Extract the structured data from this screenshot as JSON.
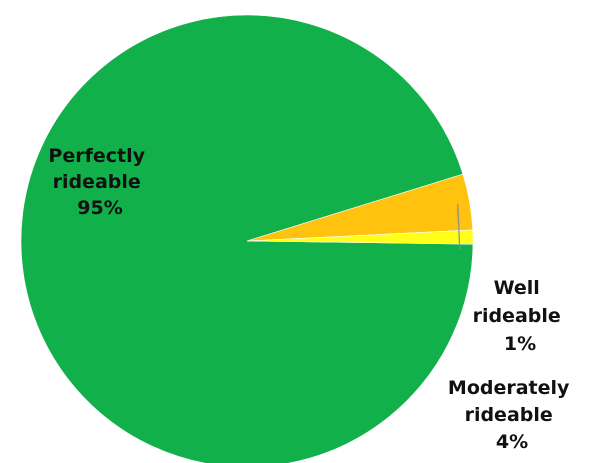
{
  "chart_data": {
    "type": "pie",
    "title": "",
    "slices": [
      {
        "label": [
          "Perfectly",
          "rideable",
          "95%"
        ],
        "value": 95,
        "color": "#12b04a"
      },
      {
        "label": [
          "Moderately",
          "rideable",
          "4%"
        ],
        "value": 4,
        "color": "#ffc20e"
      },
      {
        "label": [
          "Well",
          "rideable",
          "1%"
        ],
        "value": 1,
        "color": "#ffff1a"
      }
    ],
    "legend": "none",
    "label_placement": "inside-and-outside"
  }
}
